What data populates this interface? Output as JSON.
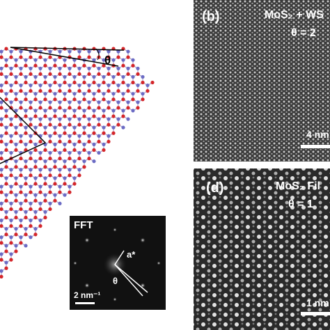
{
  "panels": {
    "a": {
      "angle_label": "θ"
    },
    "b": {
      "label": "(b)",
      "caption": "MoS₂ + WS",
      "angle": "θ = 2",
      "scale_bar": "4 nm"
    },
    "d": {
      "label": "(d)",
      "caption": "MoS₂ Fil",
      "angle": "θ = 1",
      "scale_bar": "1 nm"
    }
  },
  "fft": {
    "label": "FFT",
    "vector_label": "a*",
    "angle_label": "θ",
    "scale_bar": "2 nm⁻¹"
  }
}
